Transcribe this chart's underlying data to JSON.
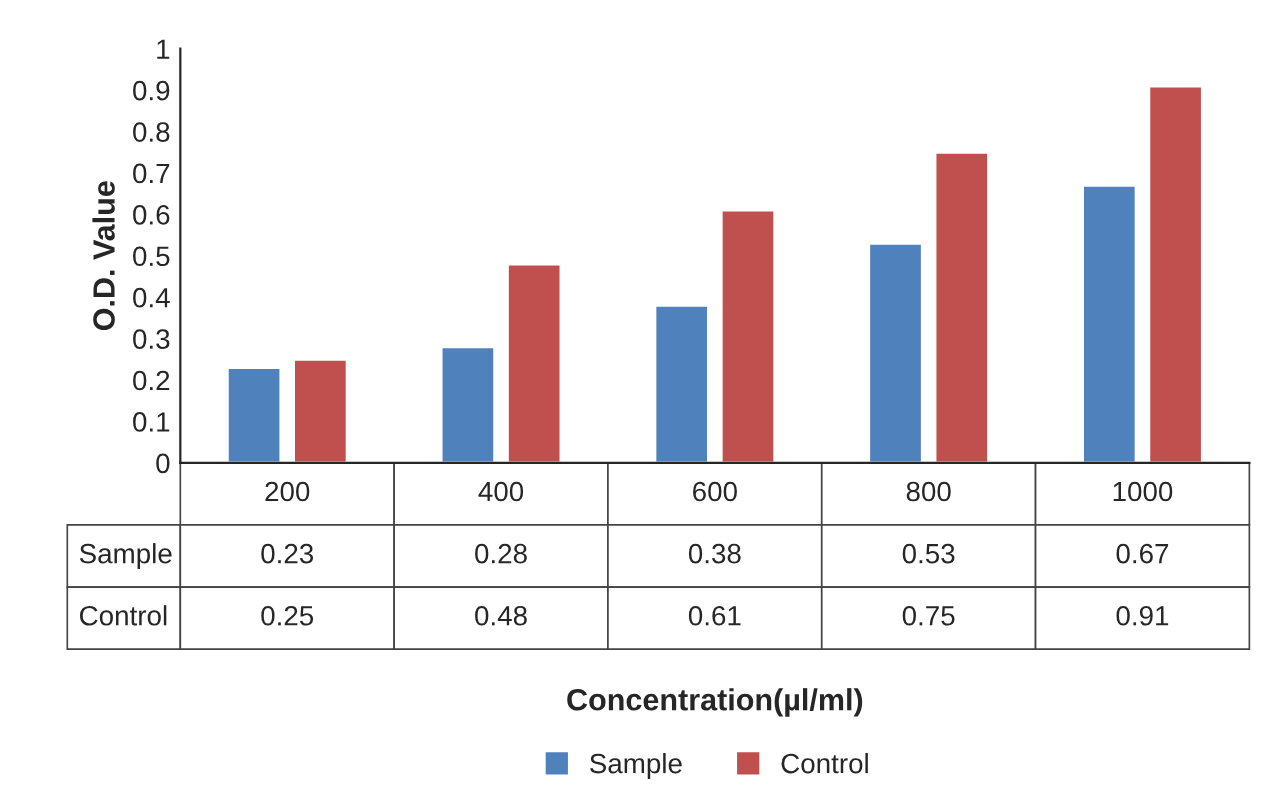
{
  "chart_data": {
    "type": "bar",
    "annotations": [
      "Concentration(µl/ml)"
    ],
    "ylabel": "O.D. Value",
    "categories": [
      "200",
      "400",
      "600",
      "800",
      "1000"
    ],
    "series": [
      {
        "name": "Sample",
        "color": "#4f81bd",
        "values": [
          0.23,
          0.28,
          0.38,
          0.53,
          0.67
        ]
      },
      {
        "name": "Control",
        "color": "#c0504d",
        "values": [
          0.25,
          0.48,
          0.61,
          0.75,
          0.91
        ]
      }
    ],
    "ylim": [
      0,
      1
    ],
    "yticks": [
      0,
      0.1,
      0.2,
      0.3,
      0.4,
      0.5,
      0.6,
      0.7,
      0.8,
      0.9,
      1
    ],
    "data_labels": true,
    "legend": "bottom",
    "grid": false
  }
}
